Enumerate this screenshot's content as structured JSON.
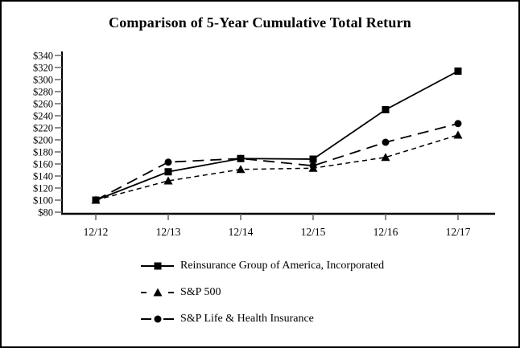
{
  "page": {
    "background_color": "#ffffff",
    "frame_border_color": "#000000",
    "line_color": "#000000"
  },
  "chart_data": {
    "type": "line",
    "title": "Comparison of 5-Year Cumulative Total Return",
    "categories": [
      "12/12",
      "12/13",
      "12/14",
      "12/15",
      "12/16",
      "12/17"
    ],
    "series": [
      {
        "name": "Reinsurance Group of America, Incorporated",
        "marker": "square",
        "line_style": "solid",
        "color": "#000000",
        "values": [
          100,
          147,
          169,
          168,
          250,
          314
        ]
      },
      {
        "name": "S&P 500",
        "marker": "triangle",
        "line_style": "short-dash",
        "color": "#000000",
        "values": [
          100,
          132,
          151,
          153,
          171,
          208
        ]
      },
      {
        "name": "S&P Life & Health Insurance",
        "marker": "circle",
        "line_style": "long-dash",
        "color": "#000000",
        "values": [
          100,
          163,
          169,
          157,
          196,
          227
        ]
      }
    ],
    "ylim": [
      80,
      340
    ],
    "ytick_step": 20,
    "ytick_prefix": "$",
    "ytick_labels": [
      "$340",
      "$320",
      "$300",
      "$280",
      "$260",
      "$240",
      "$220",
      "$200",
      "$180",
      "$160",
      "$140",
      "$120",
      "$100",
      "$80"
    ],
    "grid": "off",
    "legend_position": "bottom-left"
  }
}
